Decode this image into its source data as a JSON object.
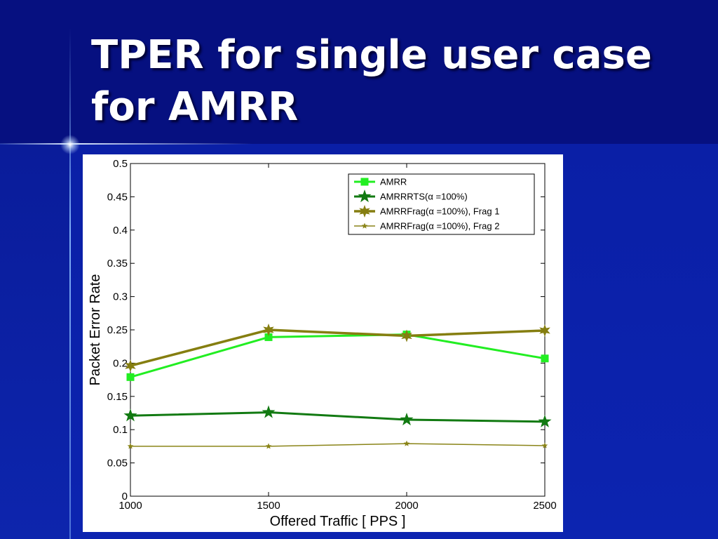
{
  "slide": {
    "title_line1": "TPER for single user case",
    "title_line2": "for AMRR"
  },
  "chart_data": {
    "type": "line",
    "xlabel": "Offered Traffic [ PPS ]",
    "ylabel": "Packet Error Rate",
    "x": [
      1000,
      1500,
      2000,
      2500
    ],
    "xlim": [
      1000,
      2500
    ],
    "ylim": [
      0,
      0.5
    ],
    "xticks": [
      "1000",
      "1500",
      "2000",
      "2500"
    ],
    "yticks": [
      "0",
      "0.05",
      "0.1",
      "0.15",
      "0.2",
      "0.25",
      "0.3",
      "0.35",
      "0.4",
      "0.45",
      "0.5"
    ],
    "legend_position": "top-right",
    "grid": false,
    "series": [
      {
        "name": "AMRR",
        "values": [
          0.179,
          0.239,
          0.243,
          0.207
        ],
        "color": "#22ee22",
        "marker": "square",
        "width": 3
      },
      {
        "name": "AMRRRTS(α =100%)",
        "values": [
          0.121,
          0.126,
          0.115,
          0.112
        ],
        "color": "#127a12",
        "marker": "star",
        "width": 3
      },
      {
        "name": "AMRRFrag(α =100%), Frag 1",
        "values": [
          0.196,
          0.25,
          0.241,
          0.249
        ],
        "color": "#857e10",
        "marker": "star6",
        "width": 3.5
      },
      {
        "name": "AMRRFrag(α =100%), Frag 2",
        "values": [
          0.075,
          0.075,
          0.079,
          0.076
        ],
        "color": "#8a8418",
        "marker": "smallstar",
        "width": 1.5
      }
    ]
  }
}
